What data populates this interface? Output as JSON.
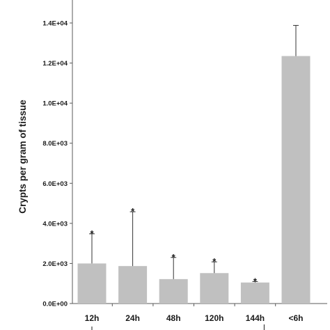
{
  "chart_data": {
    "type": "bar",
    "title": "",
    "xlabel": "",
    "ylabel": "Crypts per gram of tissue",
    "categories": [
      "12h",
      "24h",
      "48h",
      "120h",
      "144h",
      "<6h"
    ],
    "values": [
      2000,
      1870,
      1220,
      1520,
      1050,
      12350
    ],
    "error_upper": [
      3480,
      4580,
      2300,
      2080,
      1100,
      13880
    ],
    "significance": [
      "*",
      "*",
      "*",
      "*",
      "*",
      ""
    ],
    "ylim": [
      0,
      15000
    ],
    "yticks": [
      0,
      2000,
      4000,
      6000,
      8000,
      10000,
      12000,
      14000
    ],
    "ytick_labels": [
      "0.0E+00",
      "2.0E+03",
      "4.0E+03",
      "6.0E+03",
      "8.0E+03",
      "1.0E+04",
      "1.2E+04",
      "1.4E+04"
    ],
    "grid": false,
    "legend": "none",
    "bar_color": "#c0c0c0",
    "axis_color": "#595959"
  }
}
